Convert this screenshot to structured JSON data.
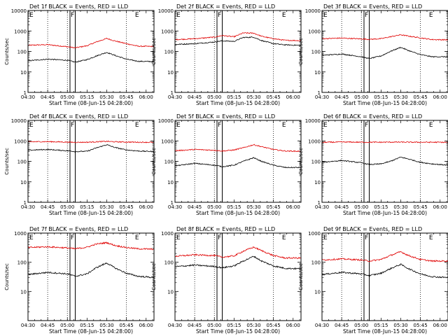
{
  "figure": {
    "xtick_labels": [
      "04:30",
      "04:45",
      "05:00",
      "05:15",
      "05:30",
      "05:45",
      "06:00"
    ],
    "xlabel": "Start Time (08-Jun-15 04:28:00)",
    "ylabel": "Counts/sec",
    "marker_labels": [
      "E",
      "F",
      "E"
    ],
    "colors": {
      "events": "#000000",
      "lld": "#e00000",
      "axes": "#000000"
    }
  },
  "chart_data": [
    {
      "type": "line",
      "title": "Det 1f BLACK = Events, RED = LLD",
      "x_range": [
        "04:30",
        "06:06"
      ],
      "yscale": "log",
      "ylim": [
        1,
        10000
      ],
      "ytick_labels": [
        "1",
        "10",
        "100",
        "1000",
        "10000"
      ],
      "grid": "dotted vertical at 04:45, 05:00, 05:45",
      "markers": [
        {
          "label": "E",
          "time": "04:30"
        },
        {
          "label": "F",
          "time": "05:02"
        },
        {
          "label": "E",
          "time": "05:51"
        }
      ],
      "shaded_band": {
        "from": "05:02",
        "to": "05:06"
      },
      "series": [
        {
          "name": "LLD",
          "color": "red",
          "x": [
            "04:30",
            "04:45",
            "05:00",
            "05:06",
            "05:15",
            "05:22",
            "05:30",
            "05:36",
            "05:45",
            "05:54",
            "06:06"
          ],
          "values": [
            200,
            215,
            170,
            150,
            190,
            290,
            430,
            330,
            240,
            180,
            175
          ]
        },
        {
          "name": "Events",
          "color": "black",
          "x": [
            "04:30",
            "04:45",
            "05:00",
            "05:06",
            "05:15",
            "05:22",
            "05:30",
            "05:36",
            "05:45",
            "05:54",
            "06:06"
          ],
          "values": [
            35,
            42,
            37,
            30,
            40,
            60,
            90,
            65,
            42,
            33,
            32
          ]
        }
      ]
    },
    {
      "type": "line",
      "title": "Det 2f BLACK = Events, RED = LLD",
      "x_range": [
        "04:30",
        "06:06"
      ],
      "yscale": "log",
      "ylim": [
        1,
        10000
      ],
      "ytick_labels": [
        "1",
        "10",
        "100",
        "1000",
        "10000"
      ],
      "grid": "dotted vertical at 04:45, 05:00, 05:45",
      "markers": [
        {
          "label": "E",
          "time": "04:30"
        },
        {
          "label": "F",
          "time": "05:02"
        },
        {
          "label": "E",
          "time": "05:51"
        }
      ],
      "shaded_band": {
        "from": "05:02",
        "to": "05:06"
      },
      "series": [
        {
          "name": "LLD",
          "color": "red",
          "x": [
            "04:30",
            "04:45",
            "05:00",
            "05:06",
            "05:15",
            "05:22",
            "05:30",
            "05:36",
            "05:45",
            "05:54",
            "06:06"
          ],
          "values": [
            380,
            420,
            500,
            600,
            520,
            800,
            780,
            550,
            420,
            350,
            340
          ]
        },
        {
          "name": "Events",
          "color": "black",
          "x": [
            "04:30",
            "04:45",
            "05:00",
            "05:06",
            "05:15",
            "05:22",
            "05:30",
            "05:36",
            "05:45",
            "05:54",
            "06:06"
          ],
          "values": [
            220,
            240,
            290,
            330,
            310,
            480,
            500,
            340,
            240,
            210,
            200
          ]
        }
      ]
    },
    {
      "type": "line",
      "title": "Det 3f BLACK = Events, RED = LLD",
      "x_range": [
        "04:30",
        "06:06"
      ],
      "yscale": "log",
      "ylim": [
        1,
        10000
      ],
      "ytick_labels": [
        "1",
        "10",
        "100",
        "1000",
        "10000"
      ],
      "grid": "dotted vertical at 04:45, 05:00, 05:45",
      "markers": [
        {
          "label": "E",
          "time": "04:30"
        },
        {
          "label": "F",
          "time": "05:02"
        },
        {
          "label": "E",
          "time": "05:51"
        }
      ],
      "shaded_band": {
        "from": "05:02",
        "to": "05:06"
      },
      "series": [
        {
          "name": "LLD",
          "color": "red",
          "x": [
            "04:30",
            "04:45",
            "05:00",
            "05:06",
            "05:15",
            "05:22",
            "05:30",
            "05:36",
            "05:45",
            "05:54",
            "06:06"
          ],
          "values": [
            420,
            450,
            410,
            390,
            420,
            520,
            650,
            560,
            460,
            380,
            370
          ]
        },
        {
          "name": "Events",
          "color": "black",
          "x": [
            "04:30",
            "04:45",
            "05:00",
            "05:06",
            "05:15",
            "05:22",
            "05:30",
            "05:36",
            "05:45",
            "05:54",
            "06:06"
          ],
          "values": [
            65,
            75,
            55,
            45,
            60,
            100,
            160,
            110,
            70,
            55,
            55
          ]
        }
      ]
    },
    {
      "type": "line",
      "title": "Det 4f BLACK = Events, RED = LLD",
      "x_range": [
        "04:30",
        "06:06"
      ],
      "yscale": "log",
      "ylim": [
        1,
        10000
      ],
      "ytick_labels": [
        "1",
        "10",
        "100",
        "1000",
        "10000"
      ],
      "grid": "dotted vertical at 04:45, 05:00, 05:45",
      "markers": [
        {
          "label": "E",
          "time": "04:30"
        },
        {
          "label": "F",
          "time": "05:02"
        },
        {
          "label": "E",
          "time": "05:51"
        }
      ],
      "shaded_band": {
        "from": "05:02",
        "to": "05:06"
      },
      "series": [
        {
          "name": "LLD",
          "color": "red",
          "x": [
            "04:30",
            "04:45",
            "05:00",
            "05:06",
            "05:15",
            "05:22",
            "05:30",
            "05:36",
            "05:45",
            "05:54",
            "06:06"
          ],
          "values": [
            900,
            920,
            870,
            850,
            860,
            900,
            950,
            900,
            880,
            860,
            850
          ]
        },
        {
          "name": "Events",
          "color": "black",
          "x": [
            "04:30",
            "04:45",
            "05:00",
            "05:06",
            "05:15",
            "05:22",
            "05:30",
            "05:36",
            "05:45",
            "05:54",
            "06:06"
          ],
          "values": [
            350,
            380,
            330,
            300,
            310,
            450,
            650,
            480,
            360,
            320,
            300
          ]
        }
      ]
    },
    {
      "type": "line",
      "title": "Det 5f BLACK = Events, RED = LLD",
      "x_range": [
        "04:30",
        "06:06"
      ],
      "yscale": "log",
      "ylim": [
        1,
        10000
      ],
      "ytick_labels": [
        "1",
        "10",
        "100",
        "1000",
        "10000"
      ],
      "grid": "dotted vertical at 04:45, 05:00, 05:45",
      "markers": [
        {
          "label": "E",
          "time": "04:30"
        },
        {
          "label": "F",
          "time": "05:02"
        },
        {
          "label": "E",
          "time": "05:51"
        }
      ],
      "shaded_band": {
        "from": "05:02",
        "to": "05:06"
      },
      "series": [
        {
          "name": "LLD",
          "color": "red",
          "x": [
            "04:30",
            "04:45",
            "05:00",
            "05:06",
            "05:15",
            "05:22",
            "05:30",
            "05:36",
            "05:45",
            "05:54",
            "06:06"
          ],
          "values": [
            330,
            380,
            350,
            320,
            360,
            460,
            650,
            520,
            380,
            320,
            310
          ]
        },
        {
          "name": "Events",
          "color": "black",
          "x": [
            "04:30",
            "04:45",
            "05:00",
            "05:06",
            "05:15",
            "05:22",
            "05:30",
            "05:36",
            "05:45",
            "05:54",
            "06:06"
          ],
          "values": [
            60,
            80,
            65,
            55,
            65,
            100,
            150,
            100,
            65,
            50,
            50
          ]
        }
      ]
    },
    {
      "type": "line",
      "title": "Det 6f BLACK = Events, RED = LLD",
      "x_range": [
        "04:30",
        "06:06"
      ],
      "yscale": "log",
      "ylim": [
        1,
        10000
      ],
      "ytick_labels": [
        "1",
        "10",
        "100",
        "1000",
        "10000"
      ],
      "grid": "dotted vertical at 04:45, 05:00, 05:45",
      "markers": [
        {
          "label": "E",
          "time": "04:30"
        },
        {
          "label": "F",
          "time": "05:02"
        },
        {
          "label": "E",
          "time": "05:51"
        }
      ],
      "shaded_band": {
        "from": "05:02",
        "to": "05:06"
      },
      "series": [
        {
          "name": "LLD",
          "color": "red",
          "x": [
            "04:30",
            "04:45",
            "05:00",
            "05:06",
            "05:15",
            "05:22",
            "05:30",
            "05:36",
            "05:45",
            "05:54",
            "06:06"
          ],
          "values": [
            850,
            880,
            860,
            860,
            860,
            870,
            870,
            860,
            860,
            860,
            850
          ]
        },
        {
          "name": "Events",
          "color": "black",
          "x": [
            "04:30",
            "04:45",
            "05:00",
            "05:06",
            "05:15",
            "05:22",
            "05:30",
            "05:36",
            "05:45",
            "05:54",
            "06:06"
          ],
          "values": [
            90,
            110,
            85,
            70,
            75,
            100,
            160,
            130,
            90,
            75,
            65
          ]
        }
      ]
    },
    {
      "type": "line",
      "title": "Det 7f BLACK = Events, RED = LLD",
      "x_range": [
        "04:30",
        "06:06"
      ],
      "yscale": "log",
      "ylim": [
        1,
        1000
      ],
      "ytick_labels": [
        "10",
        "100",
        "1000"
      ],
      "grid": "dotted vertical at 04:45, 05:00, 05:45",
      "markers": [
        {
          "label": "E",
          "time": "04:30"
        },
        {
          "label": "F",
          "time": "05:02"
        },
        {
          "label": "E",
          "time": "05:51"
        }
      ],
      "shaded_band": {
        "from": "05:02",
        "to": "05:06"
      },
      "series": [
        {
          "name": "LLD",
          "color": "red",
          "x": [
            "04:30",
            "04:45",
            "05:00",
            "05:06",
            "05:15",
            "05:22",
            "05:30",
            "05:36",
            "05:45",
            "05:54",
            "06:06"
          ],
          "values": [
            320,
            340,
            310,
            290,
            330,
            420,
            470,
            380,
            320,
            290,
            280
          ]
        },
        {
          "name": "Events",
          "color": "black",
          "x": [
            "04:30",
            "04:45",
            "05:00",
            "05:06",
            "05:15",
            "05:22",
            "05:30",
            "05:36",
            "05:45",
            "05:54",
            "06:06"
          ],
          "values": [
            38,
            45,
            40,
            33,
            40,
            65,
            95,
            65,
            42,
            33,
            30
          ]
        }
      ]
    },
    {
      "type": "line",
      "title": "Det 8f BLACK = Events, RED = LLD",
      "x_range": [
        "04:30",
        "06:06"
      ],
      "yscale": "log",
      "ylim": [
        1,
        1000
      ],
      "ytick_labels": [
        "10",
        "100",
        "1000"
      ],
      "grid": "dotted vertical at 04:45, 05:00, 05:45",
      "markers": [
        {
          "label": "E",
          "time": "04:30"
        },
        {
          "label": "F",
          "time": "05:02"
        },
        {
          "label": "E",
          "time": "05:51"
        }
      ],
      "shaded_band": {
        "from": "05:02",
        "to": "05:06"
      },
      "series": [
        {
          "name": "LLD",
          "color": "red",
          "x": [
            "04:30",
            "04:45",
            "05:00",
            "05:06",
            "05:15",
            "05:22",
            "05:30",
            "05:36",
            "05:45",
            "05:54",
            "06:06"
          ],
          "values": [
            160,
            180,
            170,
            150,
            165,
            240,
            330,
            250,
            170,
            140,
            140
          ]
        },
        {
          "name": "Events",
          "color": "black",
          "x": [
            "04:30",
            "04:45",
            "05:00",
            "05:06",
            "05:15",
            "05:22",
            "05:30",
            "05:36",
            "05:45",
            "05:54",
            "06:06"
          ],
          "values": [
            70,
            80,
            72,
            65,
            75,
            110,
            160,
            110,
            75,
            62,
            60
          ]
        }
      ]
    },
    {
      "type": "line",
      "title": "Det 9f BLACK = Events, RED = LLD",
      "x_range": [
        "04:30",
        "06:06"
      ],
      "yscale": "log",
      "ylim": [
        1,
        1000
      ],
      "ytick_labels": [
        "10",
        "100",
        "1000"
      ],
      "grid": "dotted vertical at 04:45, 05:00, 05:45",
      "markers": [
        {
          "label": "E",
          "time": "04:30"
        },
        {
          "label": "F",
          "time": "05:02"
        },
        {
          "label": "E",
          "time": "05:51"
        }
      ],
      "shaded_band": {
        "from": "05:02",
        "to": "05:06"
      },
      "series": [
        {
          "name": "LLD",
          "color": "red",
          "x": [
            "04:30",
            "04:45",
            "05:00",
            "05:06",
            "05:15",
            "05:22",
            "05:30",
            "05:36",
            "05:45",
            "05:54",
            "06:06"
          ],
          "values": [
            120,
            130,
            120,
            110,
            125,
            170,
            230,
            170,
            125,
            110,
            110
          ]
        },
        {
          "name": "Events",
          "color": "black",
          "x": [
            "04:30",
            "04:45",
            "05:00",
            "05:06",
            "05:15",
            "05:22",
            "05:30",
            "05:36",
            "05:45",
            "05:54",
            "06:06"
          ],
          "values": [
            38,
            45,
            40,
            35,
            42,
            60,
            85,
            60,
            40,
            32,
            30
          ]
        }
      ]
    }
  ]
}
